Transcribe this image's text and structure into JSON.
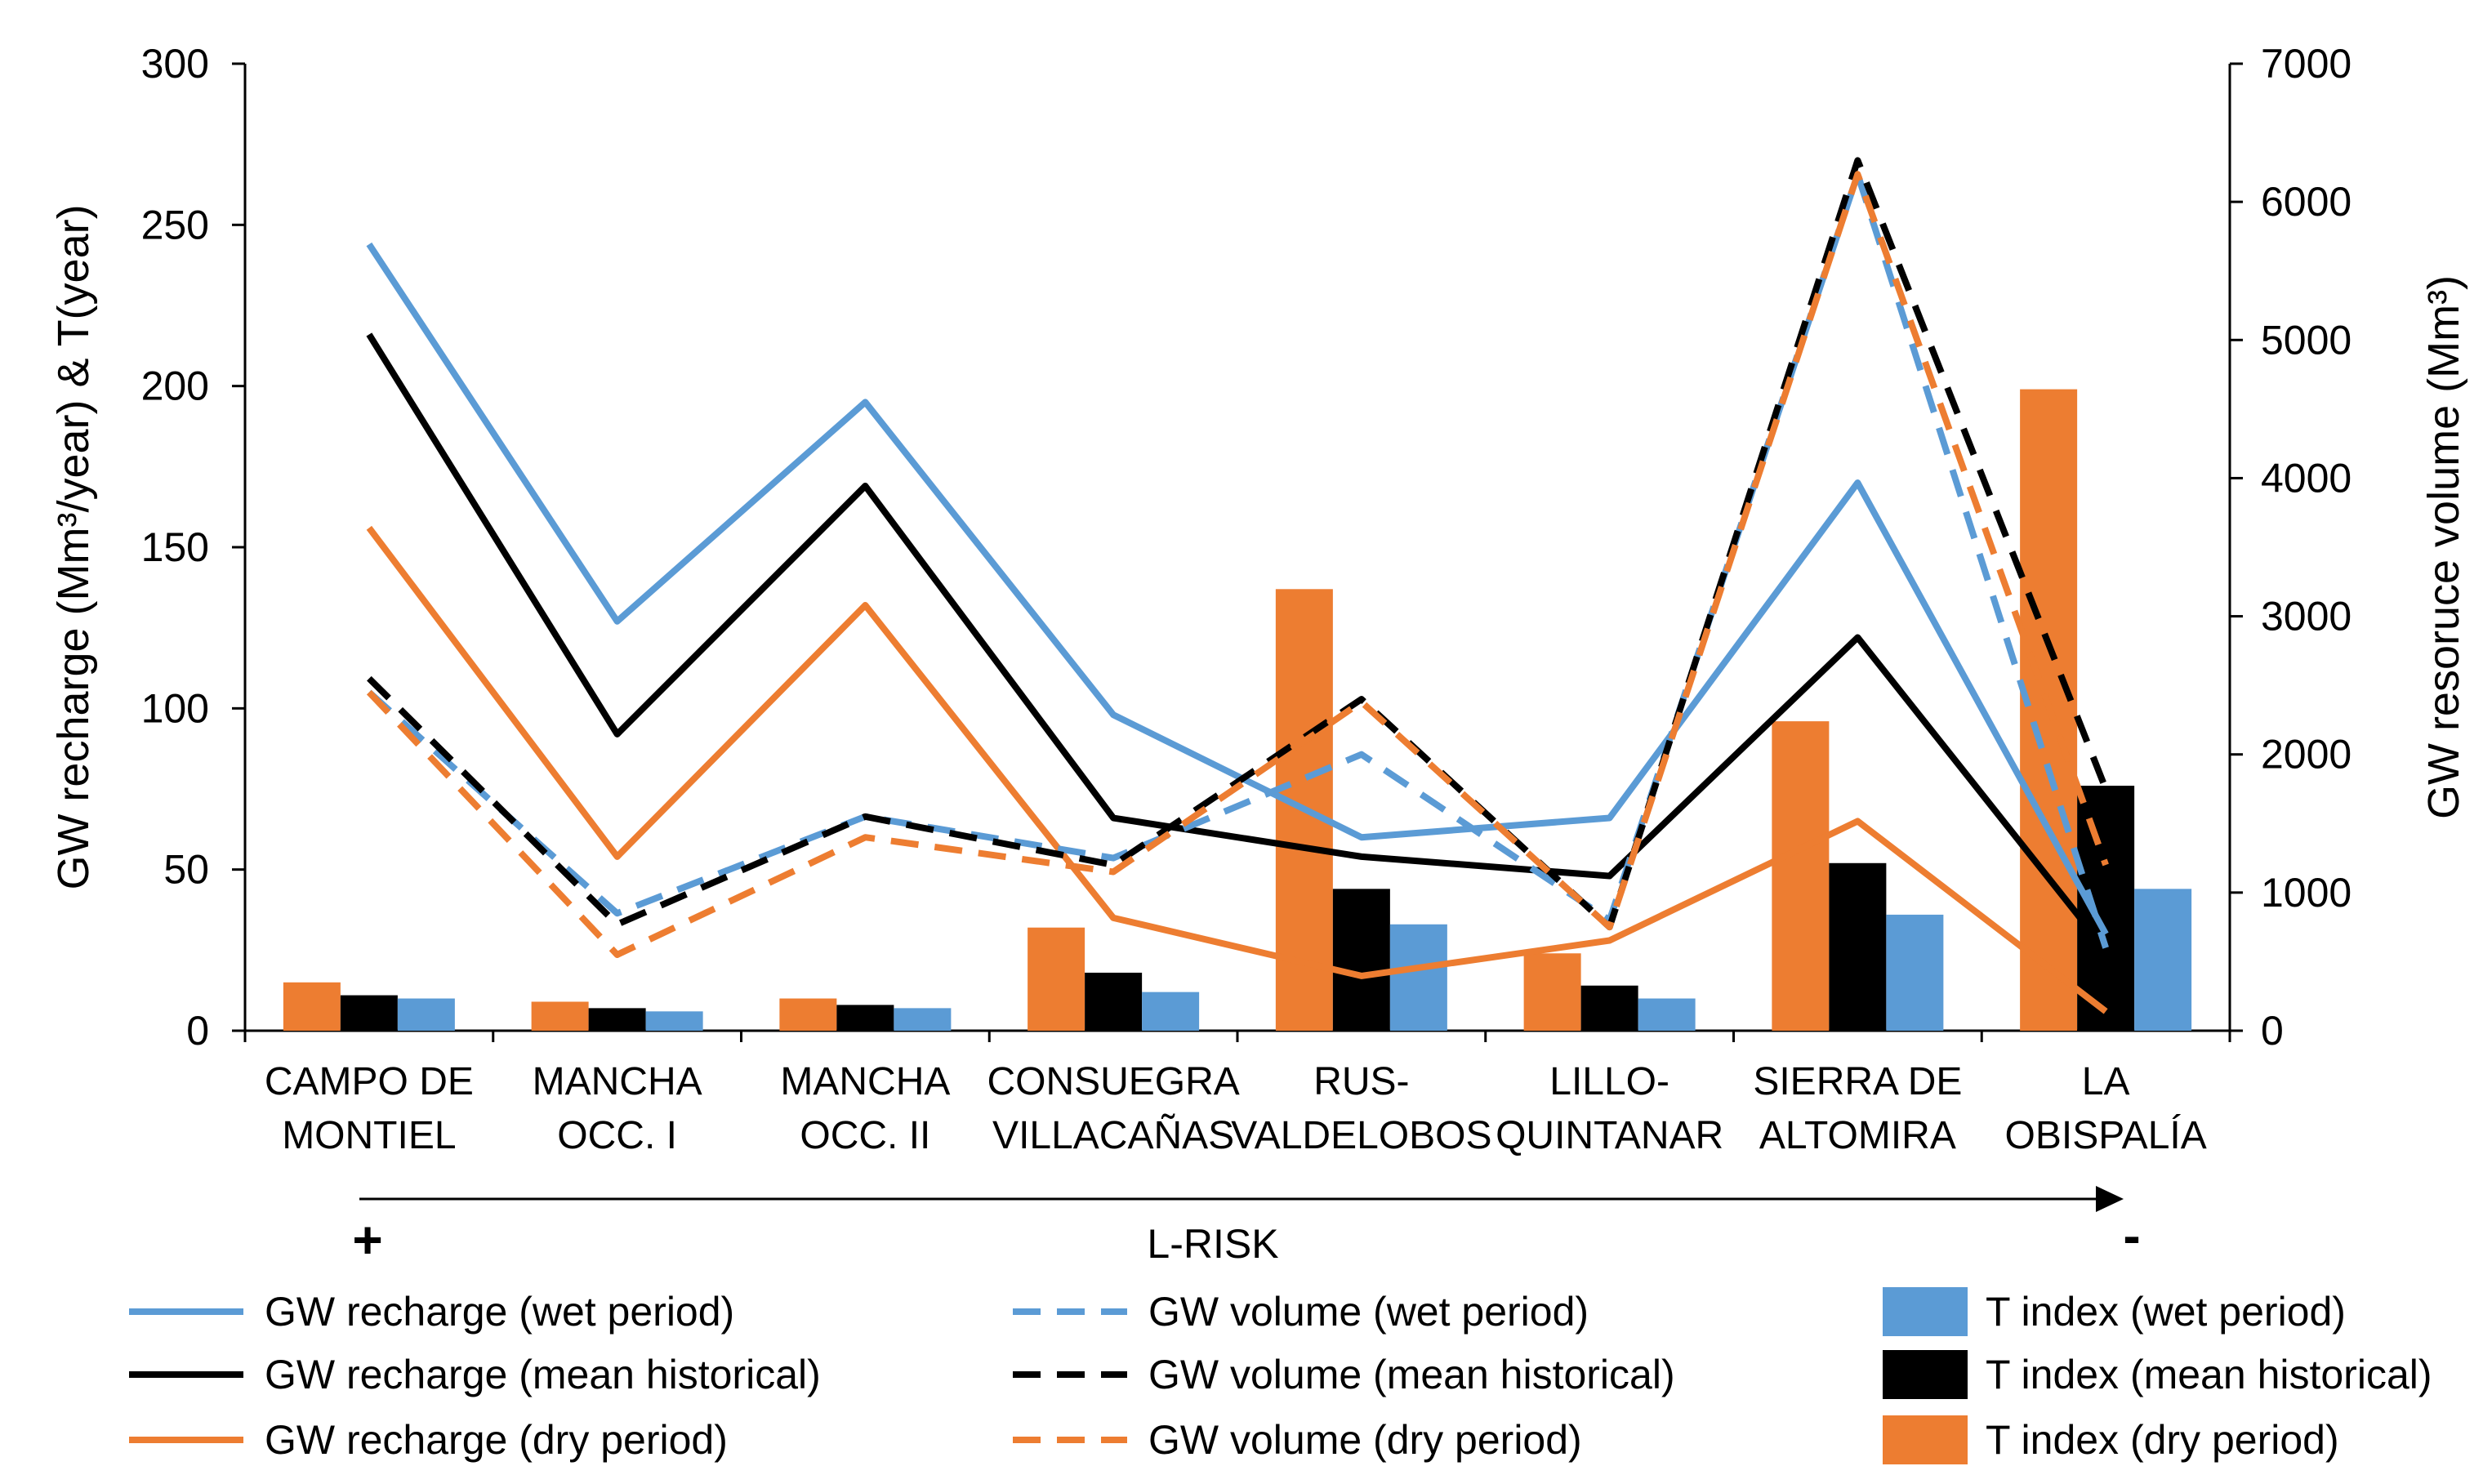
{
  "chart_data": {
    "type": "bar+line",
    "categories": [
      [
        "CAMPO DE",
        "MONTIEL"
      ],
      [
        "MANCHA",
        "OCC. I"
      ],
      [
        "MANCHA",
        "OCC. II"
      ],
      [
        "CONSUEGRA",
        "VILLACAÑAS"
      ],
      [
        "RUS-",
        "VALDELOBOS"
      ],
      [
        "LILLO-",
        "QUINTANAR"
      ],
      [
        "SIERRA DE",
        "ALTOMIRA"
      ],
      [
        "LA",
        "OBISPALÍA"
      ]
    ],
    "left_axis": {
      "title": "GW recharge (Mm³/year) & T(year)",
      "ylim": [
        0,
        300
      ],
      "ticks": [
        "0",
        "50",
        "100",
        "150",
        "200",
        "250",
        "300"
      ]
    },
    "right_axis": {
      "title": "GW resoruce volume (Mm³)",
      "ylim": [
        0,
        7000
      ],
      "ticks": [
        "0",
        "1000",
        "2000",
        "3000",
        "4000",
        "5000",
        "6000",
        "7000"
      ]
    },
    "bar_series": [
      {
        "name": "T index (dry period)",
        "color": "#ED7D31",
        "values": [
          15,
          9,
          10,
          32,
          137,
          24,
          96,
          199
        ]
      },
      {
        "name": "T index (mean historical)",
        "color": "#000000",
        "values": [
          11,
          7,
          8,
          18,
          44,
          14,
          52,
          76
        ]
      },
      {
        "name": "T index (wet period)",
        "color": "#5B9BD5",
        "values": [
          10,
          6,
          7,
          12,
          33,
          10,
          36,
          44
        ]
      }
    ],
    "line_series": [
      {
        "name": "GW recharge (wet period)",
        "color": "#5B9BD5",
        "dashed": false,
        "axis": "left",
        "values": [
          244,
          127,
          195,
          98,
          60,
          66,
          170,
          30
        ]
      },
      {
        "name": "GW recharge (mean historical)",
        "color": "#000000",
        "dashed": false,
        "axis": "left",
        "values": [
          216,
          92,
          169,
          66,
          54,
          48,
          122,
          25
        ]
      },
      {
        "name": "GW recharge (dry period)",
        "color": "#ED7D31",
        "dashed": false,
        "axis": "left",
        "values": [
          156,
          54,
          132,
          35,
          17,
          28,
          65,
          6
        ]
      },
      {
        "name": "GW volume (wet period)",
        "color": "#5B9BD5",
        "dashed": true,
        "axis": "right",
        "values": [
          2450,
          850,
          1550,
          1250,
          2000,
          800,
          6200,
          600
        ]
      },
      {
        "name": "GW volume (mean historical)",
        "color": "#000000",
        "dashed": true,
        "axis": "right",
        "values": [
          2550,
          770,
          1550,
          1200,
          2400,
          750,
          6300,
          1750
        ]
      },
      {
        "name": "GW volume (dry period)",
        "color": "#ED7D31",
        "dashed": true,
        "axis": "right",
        "values": [
          2450,
          550,
          1400,
          1150,
          2380,
          750,
          6200,
          1200
        ]
      }
    ],
    "risk_axis": {
      "label": "L-RISK",
      "start": "+",
      "end": "-"
    },
    "legend": {
      "position": "bottom",
      "entries": [
        "GW recharge (wet period)",
        "GW volume (wet period)",
        "T index (wet period)",
        "GW recharge (mean historical)",
        "GW volume (mean historical)",
        "T index (mean historical)",
        "GW recharge (dry period)",
        "GW volume (dry period)",
        "T index (dry period)"
      ]
    }
  }
}
